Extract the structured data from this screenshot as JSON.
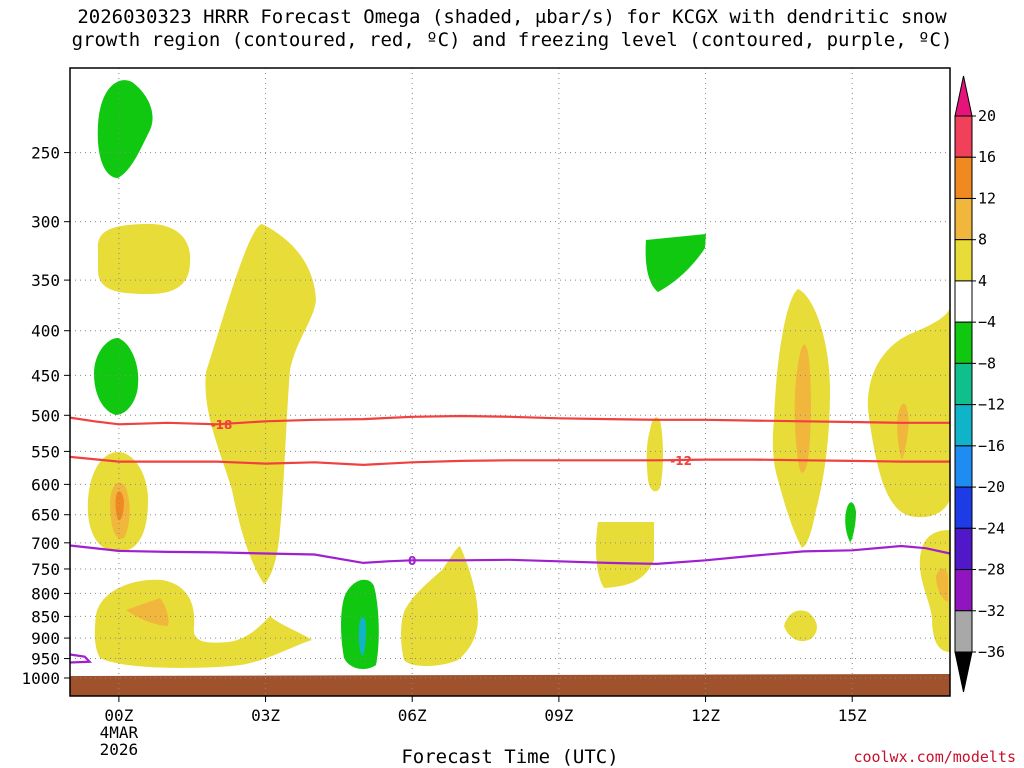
{
  "title": {
    "line1": "2026030323 HRRR Forecast Omega (shaded, μbar/s) for KCGX with dendritic snow",
    "line2": "growth region (contoured, red, ºC) and freezing level (contoured, purple, ºC)"
  },
  "xlabel": "Forecast Time (UTC)",
  "credit": "coolwx.com/modelts",
  "chart_data": {
    "type": "heatmap",
    "xlabel": "Forecast Time (UTC)",
    "ylabel": "",
    "x_ticks": [
      {
        "label": "00Z",
        "sub": [
          "4MAR",
          "2026"
        ],
        "hour": 0
      },
      {
        "label": "03Z",
        "hour": 3
      },
      {
        "label": "06Z",
        "hour": 6
      },
      {
        "label": "09Z",
        "hour": 9
      },
      {
        "label": "12Z",
        "hour": 12
      },
      {
        "label": "15Z",
        "hour": 15
      }
    ],
    "xlim": [
      -1,
      17
    ],
    "y_ticks": [
      250,
      300,
      350,
      400,
      450,
      500,
      550,
      600,
      650,
      700,
      750,
      800,
      850,
      900,
      950,
      1000
    ],
    "ylim_hpa": [
      200,
      1000
    ],
    "y_scale": "log-pressure (inverted)",
    "grid": true,
    "colorbar": {
      "levels": [
        "20",
        "16",
        "12",
        "8",
        "4",
        "−4",
        "−8",
        "−12",
        "−16",
        "−20",
        "−24",
        "−28",
        "−32",
        "−36"
      ],
      "colors": [
        "#f0405a",
        "#f08a20",
        "#f0b73c",
        "#e8dc38",
        "#ffffff",
        "#10c810",
        "#10c08c",
        "#10b4c8",
        "#1e8cf0",
        "#1e3ce6",
        "#5018c8",
        "#9014c0",
        "#a8a8a8"
      ],
      "top_arrow_color": "#e6147a",
      "bottom_arrow_color": "#000000"
    },
    "contours": [
      {
        "name": "-18",
        "color": "#f04040",
        "label_hour": 2.1,
        "points": [
          [
            -1,
            503
          ],
          [
            -0.5,
            508
          ],
          [
            0,
            512
          ],
          [
            1,
            510
          ],
          [
            2,
            512
          ],
          [
            3,
            508
          ],
          [
            4,
            506
          ],
          [
            5,
            505
          ],
          [
            6,
            502
          ],
          [
            7,
            501
          ],
          [
            8,
            502
          ],
          [
            9,
            504
          ],
          [
            10,
            505
          ],
          [
            11,
            506
          ],
          [
            12,
            506
          ],
          [
            13,
            507
          ],
          [
            14,
            508
          ],
          [
            15,
            509
          ],
          [
            16,
            510
          ],
          [
            17,
            510
          ]
        ]
      },
      {
        "name": "-12",
        "color": "#f04040",
        "label_hour": 11.5,
        "points": [
          [
            -1,
            558
          ],
          [
            0,
            565
          ],
          [
            1,
            565
          ],
          [
            2,
            565
          ],
          [
            3,
            568
          ],
          [
            4,
            566
          ],
          [
            5,
            570
          ],
          [
            6,
            566
          ],
          [
            7,
            564
          ],
          [
            8,
            563
          ],
          [
            9,
            563
          ],
          [
            10,
            563
          ],
          [
            11,
            563
          ],
          [
            12,
            562
          ],
          [
            13,
            562
          ],
          [
            14,
            563
          ],
          [
            15,
            564
          ],
          [
            16,
            565
          ],
          [
            17,
            565
          ]
        ]
      },
      {
        "name": "0",
        "color": "#a020d0",
        "label_hour": 6.0,
        "points": [
          [
            -1,
            705
          ],
          [
            0,
            715
          ],
          [
            1,
            717
          ],
          [
            2,
            718
          ],
          [
            3,
            720
          ],
          [
            4,
            722
          ],
          [
            5,
            738
          ],
          [
            5.5,
            735
          ],
          [
            6,
            733
          ],
          [
            7,
            733
          ],
          [
            8,
            732
          ],
          [
            9,
            735
          ],
          [
            10,
            738
          ],
          [
            11,
            740
          ],
          [
            12,
            733
          ],
          [
            13,
            724
          ],
          [
            14,
            716
          ],
          [
            15,
            714
          ],
          [
            16,
            706
          ],
          [
            16.5,
            710
          ],
          [
            17,
            720
          ]
        ]
      },
      {
        "name": "0",
        "color": "#a020d0",
        "label_hour": null,
        "points": [
          [
            -1,
            940
          ],
          [
            -0.7,
            945
          ],
          [
            -0.6,
            958
          ],
          [
            -1,
            960
          ]
        ]
      }
    ]
  }
}
